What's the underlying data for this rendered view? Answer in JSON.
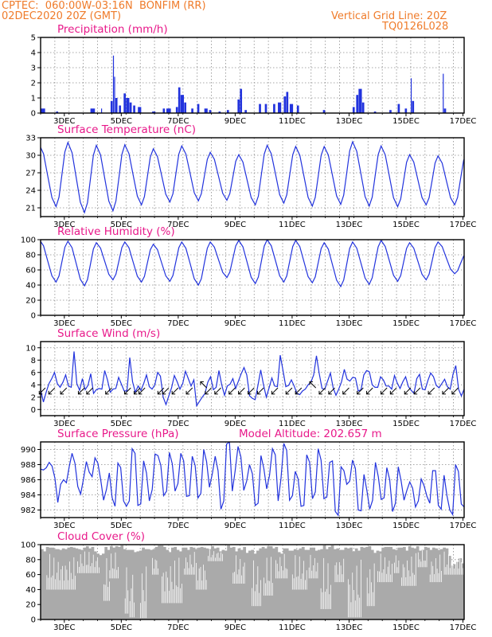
{
  "header": {
    "line1_left": "CPTEC:  060:00W-03:16N  BONFIM (RR)",
    "line2_left": "02DEC2020 20Z (GMT)",
    "line1_right": "Vertical Grid Line: 20Z",
    "line2_right": "TQ0126L028"
  },
  "colors": {
    "header": "#ef7b2a",
    "title": "#e8198a",
    "series": "#2233dd",
    "cloud": "#aaaaaa",
    "grid": "#8a8a8a"
  },
  "model_altitude": "Model Altitude: 202.657 m",
  "x_tick_labels": [
    "3DEC",
    "5DEC",
    "7DEC",
    "9DEC",
    "11DEC",
    "13DEC",
    "15DEC",
    "17DEC"
  ],
  "chart_data": [
    {
      "type": "bar",
      "title": "Precipitation (mm/h)",
      "ylim": [
        0,
        5
      ],
      "yticks": [
        0,
        1,
        2,
        3,
        4,
        5
      ],
      "x": "hours from 02DEC2020 20Z",
      "events": [
        {
          "t": 0,
          "w": 4,
          "v": 0.3
        },
        {
          "t": 13,
          "w": 2,
          "v": 0.1
        },
        {
          "t": 42,
          "w": 4,
          "v": 0.3
        },
        {
          "t": 51,
          "w": 1,
          "v": 0.3
        },
        {
          "t": 59,
          "w": 2,
          "v": 0.8
        },
        {
          "t": 61,
          "w": 1,
          "v": 3.8
        },
        {
          "t": 62,
          "w": 1,
          "v": 2.4
        },
        {
          "t": 63,
          "w": 2,
          "v": 1.0
        },
        {
          "t": 66,
          "w": 2,
          "v": 0.5
        },
        {
          "t": 70,
          "w": 2,
          "v": 1.3
        },
        {
          "t": 72,
          "w": 3,
          "v": 1.0
        },
        {
          "t": 75,
          "w": 2,
          "v": 0.7
        },
        {
          "t": 78,
          "w": 2,
          "v": 0.5
        },
        {
          "t": 82,
          "w": 3,
          "v": 0.4
        },
        {
          "t": 94,
          "w": 3,
          "v": 0.1
        },
        {
          "t": 103,
          "w": 2,
          "v": 0.3
        },
        {
          "t": 106,
          "w": 4,
          "v": 0.3
        },
        {
          "t": 114,
          "w": 2,
          "v": 0.4
        },
        {
          "t": 116,
          "w": 2,
          "v": 1.7
        },
        {
          "t": 118,
          "w": 3,
          "v": 1.2
        },
        {
          "t": 121,
          "w": 2,
          "v": 0.7
        },
        {
          "t": 127,
          "w": 2,
          "v": 0.3
        },
        {
          "t": 132,
          "w": 2,
          "v": 0.6
        },
        {
          "t": 138,
          "w": 3,
          "v": 0.3
        },
        {
          "t": 142,
          "w": 2,
          "v": 0.2
        },
        {
          "t": 150,
          "w": 2,
          "v": 0.1
        },
        {
          "t": 157,
          "w": 2,
          "v": 0.2
        },
        {
          "t": 166,
          "w": 2,
          "v": 0.9
        },
        {
          "t": 168,
          "w": 2,
          "v": 1.6
        },
        {
          "t": 172,
          "w": 2,
          "v": 0.2
        },
        {
          "t": 184,
          "w": 2,
          "v": 0.6
        },
        {
          "t": 189,
          "w": 2,
          "v": 0.6
        },
        {
          "t": 196,
          "w": 2,
          "v": 0.6
        },
        {
          "t": 200,
          "w": 3,
          "v": 0.7
        },
        {
          "t": 205,
          "w": 2,
          "v": 1.1
        },
        {
          "t": 207,
          "w": 2,
          "v": 1.4
        },
        {
          "t": 210,
          "w": 3,
          "v": 0.6
        },
        {
          "t": 216,
          "w": 2,
          "v": 0.5
        },
        {
          "t": 238,
          "w": 2,
          "v": 0.2
        },
        {
          "t": 263,
          "w": 2,
          "v": 0.4
        },
        {
          "t": 266,
          "w": 2,
          "v": 1.2
        },
        {
          "t": 268,
          "w": 3,
          "v": 1.6
        },
        {
          "t": 271,
          "w": 2,
          "v": 0.7
        },
        {
          "t": 281,
          "w": 2,
          "v": 0.1
        },
        {
          "t": 294,
          "w": 2,
          "v": 0.2
        },
        {
          "t": 301,
          "w": 2,
          "v": 0.6
        },
        {
          "t": 307,
          "w": 2,
          "v": 0.3
        },
        {
          "t": 312,
          "w": 1,
          "v": 2.3
        },
        {
          "t": 313,
          "w": 2,
          "v": 0.8
        },
        {
          "t": 339,
          "w": 1,
          "v": 2.6
        },
        {
          "t": 340,
          "w": 2,
          "v": 0.3
        }
      ]
    },
    {
      "type": "line",
      "title": "Surface Temperature (nC)",
      "ylim": [
        19.5,
        33
      ],
      "yticks": [
        21,
        24,
        27,
        30,
        33
      ],
      "daily_max": [
        31.8,
        32.2,
        31.7,
        31.8,
        31.1,
        31.6,
        30.5,
        30.1,
        31.7,
        31.5,
        31.5,
        32.3,
        31.6,
        30.1,
        29.9,
        30.4
      ],
      "daily_min": [
        21.2,
        20.2,
        20.5,
        21.5,
        22.0,
        22.2,
        22.3,
        21.5,
        21.8,
        21.3,
        21.6,
        21.3,
        21.2,
        21.5,
        21.5,
        23.0
      ]
    },
    {
      "type": "line",
      "title": "Relative Humidity (%)",
      "ylim": [
        0,
        100
      ],
      "yticks": [
        0,
        20,
        40,
        60,
        80,
        100
      ],
      "daily_max": [
        100,
        98,
        96,
        97,
        94,
        97,
        97,
        99,
        100,
        99,
        96,
        97,
        99,
        96,
        97,
        82
      ],
      "daily_min": [
        44,
        39,
        47,
        44,
        45,
        40,
        50,
        42,
        44,
        43,
        38,
        41,
        45,
        47,
        55,
        46
      ]
    },
    {
      "type": "line",
      "title": "Surface Wind (m/s)",
      "ylim": [
        -1,
        11
      ],
      "yticks": [
        0,
        2,
        4,
        6,
        8,
        10
      ],
      "values": [
        3.2,
        1.2,
        2.8,
        4.2,
        5.0,
        6.0,
        4.2,
        3.6,
        4.4,
        5.6,
        3.8,
        3.6,
        9.4,
        4.2,
        3.1,
        5.0,
        3.2,
        3.9,
        5.8,
        2.6,
        3.2,
        3.4,
        3.3,
        6.3,
        4.8,
        2.8,
        3.3,
        3.4,
        5.2,
        4.1,
        3.0,
        3.0,
        8.4,
        4.5,
        2.8,
        3.8,
        3.1,
        4.2,
        5.6,
        3.7,
        3.3,
        4.0,
        6.0,
        5.4,
        2.0,
        0.8,
        2.2,
        3.5,
        5.5,
        4.5,
        3.3,
        4.2,
        6.2,
        5.0,
        3.8,
        4.8,
        0.6,
        1.3,
        2.0,
        2.6,
        4.4,
        5.3,
        3.2,
        3.6,
        6.3,
        4.0,
        2.3,
        3.8,
        4.1,
        5.0,
        3.4,
        4.6,
        5.8,
        6.8,
        5.6,
        2.2,
        1.8,
        1.6,
        3.9,
        6.4,
        4.0,
        2.0,
        3.5,
        5.1,
        3.8,
        3.7,
        8.8,
        6.3,
        3.7,
        3.9,
        4.8,
        3.8,
        2.6,
        2.4,
        3.0,
        3.3,
        4.0,
        4.4,
        5.6,
        8.7,
        5.8,
        3.4,
        3.3,
        4.6,
        5.9,
        3.5,
        2.3,
        3.3,
        4.5,
        6.5,
        4.9,
        4.6,
        5.2,
        5.1,
        3.0,
        3.2,
        5.6,
        6.3,
        6.1,
        4.0,
        3.6,
        3.6,
        5.3,
        4.8,
        3.8,
        3.8,
        3.3,
        5.5,
        4.3,
        3.4,
        4.5,
        5.3,
        3.7,
        3.1,
        2.6,
        5.0,
        5.7,
        3.3,
        3.2,
        4.7,
        5.9,
        5.3,
        3.9,
        3.5,
        4.2,
        4.9,
        3.7,
        3.3,
        5.7,
        7.1,
        3.3,
        2.2,
        3.3
      ],
      "arrows": [
        {
          "t": 4,
          "dir": "sw"
        },
        {
          "t": 12,
          "dir": "sw"
        },
        {
          "t": 22,
          "dir": "sw"
        },
        {
          "t": 37,
          "dir": "sw"
        },
        {
          "t": 44,
          "dir": "sw"
        },
        {
          "t": 60,
          "dir": "sw"
        },
        {
          "t": 76,
          "dir": "sw"
        },
        {
          "t": 84,
          "dir": "sw"
        },
        {
          "t": 88,
          "dir": "sw"
        },
        {
          "t": 104,
          "dir": "sw"
        },
        {
          "t": 108,
          "dir": "sw"
        },
        {
          "t": 116,
          "dir": "sw"
        },
        {
          "t": 128,
          "dir": "sw"
        },
        {
          "t": 140,
          "dir": "nw"
        },
        {
          "t": 144,
          "dir": "sw"
        },
        {
          "t": 152,
          "dir": "sw"
        },
        {
          "t": 164,
          "dir": "sw"
        },
        {
          "t": 172,
          "dir": "sw"
        },
        {
          "t": 180,
          "dir": "sw"
        },
        {
          "t": 188,
          "dir": "sw"
        },
        {
          "t": 200,
          "dir": "sw"
        },
        {
          "t": 212,
          "dir": "sw"
        },
        {
          "t": 220,
          "dir": "sw"
        },
        {
          "t": 232,
          "dir": "nw"
        },
        {
          "t": 240,
          "dir": "sw"
        },
        {
          "t": 248,
          "dir": "sw"
        },
        {
          "t": 260,
          "dir": "sw"
        },
        {
          "t": 272,
          "dir": "sw"
        },
        {
          "t": 280,
          "dir": "sw"
        },
        {
          "t": 292,
          "dir": "sw"
        },
        {
          "t": 300,
          "dir": "sw"
        },
        {
          "t": 312,
          "dir": "sw"
        },
        {
          "t": 320,
          "dir": "sw"
        },
        {
          "t": 332,
          "dir": "sw"
        },
        {
          "t": 344,
          "dir": "sw"
        },
        {
          "t": 352,
          "dir": "sw"
        }
      ]
    },
    {
      "type": "line",
      "title": "Surface Pressure (hPa)",
      "ylim": [
        981,
        991
      ],
      "yticks": [
        982,
        984,
        986,
        988,
        990
      ],
      "values": [
        987.4,
        987.3,
        987.6,
        988.3,
        987.8,
        986.2,
        983.0,
        985.4,
        986.0,
        985.6,
        987.7,
        989.5,
        988.2,
        985.1,
        984.1,
        986.1,
        988.4,
        987.0,
        986.4,
        988.9,
        988.2,
        986.0,
        983.3,
        984.7,
        986.9,
        983.6,
        982.5,
        988.2,
        987.6,
        983.2,
        982.5,
        983.2,
        990.1,
        989.5,
        982.6,
        982.8,
        988.5,
        986.9,
        983.2,
        984.7,
        989.4,
        989.2,
        987.9,
        983.9,
        984.5,
        989.6,
        988.1,
        984.5,
        985.5,
        989.5,
        988.5,
        983.8,
        983.9,
        989.1,
        987.9,
        983.6,
        984.2,
        990.0,
        988.4,
        985.0,
        986.8,
        989.1,
        987.2,
        982.1,
        983.2,
        990.7,
        991.0,
        984.5,
        987.2,
        990.4,
        989.0,
        984.6,
        985.8,
        988.0,
        986.8,
        982.6,
        982.9,
        989.2,
        987.5,
        984.8,
        986.6,
        990.1,
        989.3,
        983.2,
        986.1,
        990.8,
        989.9,
        983.3,
        983.9,
        987.1,
        986.1,
        982.5,
        982.6,
        989.3,
        988.3,
        983.5,
        984.4,
        990.1,
        988.6,
        983.5,
        983.7,
        988.3,
        988.5,
        981.8,
        981.3,
        987.7,
        987.2,
        985.4,
        985.8,
        988.6,
        987.5,
        982.0,
        981.9,
        986.7,
        984.6,
        982.1,
        983.3,
        988.3,
        986.4,
        983.4,
        983.6,
        987.6,
        986.0,
        981.8,
        982.9,
        987.7,
        985.8,
        983.3,
        984.6,
        985.7,
        984.9,
        982.4,
        983.2,
        986.1,
        985.2,
        983.8,
        982.9,
        987.2,
        987.2,
        982.6,
        982.1,
        986.6,
        983.9,
        982.0,
        981.4,
        988.0,
        987.1,
        982.8,
        982.4
      ]
    },
    {
      "type": "bar",
      "title": "Cloud Cover (%)",
      "ylim": [
        0,
        100
      ],
      "yticks": [
        0,
        20,
        40,
        60,
        80,
        100
      ],
      "values": [
        94,
        91,
        97,
        96,
        96,
        94,
        94,
        93,
        95,
        94,
        96,
        97,
        96,
        95,
        94,
        93,
        96,
        98,
        95,
        97,
        91,
        88,
        86,
        88,
        97,
        93,
        98,
        96,
        98,
        97,
        99,
        94,
        93,
        93,
        93,
        90,
        91,
        92,
        96,
        94,
        94,
        93,
        94,
        97,
        99,
        99,
        97,
        93,
        90,
        96,
        97,
        93,
        91,
        96,
        96,
        93,
        97,
        96,
        94,
        96,
        97,
        96,
        95,
        94,
        98,
        95,
        96,
        91,
        93,
        92,
        99,
        96,
        97,
        91,
        95,
        93,
        97,
        89,
        92,
        93,
        88,
        92,
        95,
        97,
        95,
        98,
        98,
        95,
        97,
        90,
        88,
        95,
        95,
        92,
        92,
        94,
        93,
        95,
        97,
        93,
        93,
        96,
        96,
        92,
        93,
        94,
        99,
        94,
        97,
        99,
        94,
        95,
        93,
        93,
        96,
        95,
        96,
        91,
        95,
        92,
        97,
        96,
        97,
        98,
        93,
        89,
        92,
        91,
        96,
        97,
        97,
        97,
        94,
        93,
        96,
        96,
        97,
        92,
        98,
        96,
        95,
        98,
        92,
        93,
        97,
        96,
        93,
        96,
        95,
        93,
        94,
        96,
        95,
        85,
        72,
        74,
        77,
        82,
        75
      ],
      "low_spans": [
        {
          "t0": 5,
          "t1": 30,
          "v": 40
        },
        {
          "t0": 31,
          "t1": 50,
          "v": 62
        },
        {
          "t0": 53,
          "t1": 58,
          "v": 25
        },
        {
          "t0": 58,
          "t1": 66,
          "v": 55
        },
        {
          "t0": 71,
          "t1": 74,
          "v": 8
        },
        {
          "t0": 75,
          "t1": 79,
          "v": 3
        },
        {
          "t0": 84,
          "t1": 90,
          "v": 2
        },
        {
          "t0": 94,
          "t1": 100,
          "v": 60
        },
        {
          "t0": 102,
          "t1": 120,
          "v": 22
        },
        {
          "t0": 121,
          "t1": 130,
          "v": 60
        },
        {
          "t0": 131,
          "t1": 140,
          "v": 40
        },
        {
          "t0": 141,
          "t1": 154,
          "v": 78
        },
        {
          "t0": 162,
          "t1": 172,
          "v": 48
        },
        {
          "t0": 178,
          "t1": 186,
          "v": 18
        },
        {
          "t0": 188,
          "t1": 196,
          "v": 32
        },
        {
          "t0": 198,
          "t1": 208,
          "v": 55
        },
        {
          "t0": 212,
          "t1": 224,
          "v": 40
        },
        {
          "t0": 226,
          "t1": 234,
          "v": 55
        },
        {
          "t0": 236,
          "t1": 245,
          "v": 14
        },
        {
          "t0": 248,
          "t1": 256,
          "v": 50
        },
        {
          "t0": 259,
          "t1": 270,
          "v": 3
        },
        {
          "t0": 275,
          "t1": 282,
          "v": 18
        },
        {
          "t0": 284,
          "t1": 296,
          "v": 50
        },
        {
          "t0": 298,
          "t1": 302,
          "v": 62
        },
        {
          "t0": 304,
          "t1": 316,
          "v": 45
        },
        {
          "t0": 318,
          "t1": 326,
          "v": 70
        },
        {
          "t0": 328,
          "t1": 338,
          "v": 50
        },
        {
          "t0": 340,
          "t1": 356,
          "v": 60
        }
      ]
    }
  ]
}
